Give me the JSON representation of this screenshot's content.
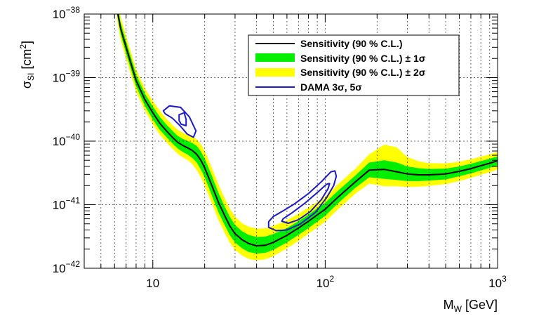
{
  "chart_data": {
    "type": "line",
    "x_scale": "log",
    "y_scale": "log",
    "xlim": [
      4,
      1000
    ],
    "ylim": [
      1e-42,
      1e-38
    ],
    "xlabel": {
      "main": "M",
      "sub": "W",
      "unit": " [GeV]"
    },
    "ylabel": {
      "main": "σ",
      "sub": "SI",
      "unit": " [cm",
      "sup": "2",
      "close": "]"
    },
    "x_ticks": [
      {
        "value": 10,
        "base": "10",
        "exp": ""
      },
      {
        "value": 100,
        "base": "10",
        "exp": "2"
      },
      {
        "value": 1000,
        "base": "10",
        "exp": "3"
      }
    ],
    "y_ticks": [
      {
        "value": 1e-38,
        "base": "10",
        "exp": "−38"
      },
      {
        "value": 1e-39,
        "base": "10",
        "exp": "−39"
      },
      {
        "value": 1e-40,
        "base": "10",
        "exp": "−40"
      },
      {
        "value": 1e-41,
        "base": "10",
        "exp": "−41"
      },
      {
        "value": 1e-42,
        "base": "10",
        "exp": "−42"
      }
    ],
    "legend": {
      "position": "top-right",
      "entries": [
        {
          "label": "Sensitivity (90 % C.L.)",
          "symbol": "line",
          "color": "#000000"
        },
        {
          "label": "Sensitivity (90 % C.L.) ± 1σ",
          "symbol": "box",
          "color": "#00ee00"
        },
        {
          "label": "Sensitivity (90 % C.L.) ± 2σ",
          "symbol": "box",
          "color": "#ffff00"
        },
        {
          "label": "DAMA 3σ, 5σ",
          "symbol": "line",
          "color": "#1a1acc"
        }
      ]
    },
    "colors": {
      "median": "#000000",
      "band1": "#00ee00",
      "band2": "#ffff00",
      "dama": "#1a1acc"
    },
    "series": [
      {
        "name": "Sensitivity (90 % C.L.)",
        "x": [
          6.2,
          6.5,
          7,
          7.5,
          8,
          9,
          10,
          11,
          12,
          13,
          14,
          15,
          16,
          17,
          18,
          19,
          20,
          22,
          24,
          26,
          28,
          30,
          33,
          36,
          40,
          45,
          50,
          60,
          70,
          80,
          100,
          120,
          150,
          180,
          220,
          260,
          300,
          350,
          400,
          500,
          600,
          700,
          800,
          900,
          1000
        ],
        "y": [
          1.2e-38,
          6e-39,
          3e-39,
          1.6e-39,
          9e-40,
          4.5e-40,
          2.8e-40,
          1.9e-40,
          1.45e-40,
          1.15e-40,
          9.5e-41,
          8.5e-41,
          7.8e-41,
          7.1e-41,
          6.2e-41,
          5e-41,
          3.8e-41,
          2e-41,
          1.1e-41,
          6.9e-42,
          4.6e-42,
          3.5e-42,
          2.8e-42,
          2.45e-42,
          2.25e-42,
          2.3e-42,
          2.55e-42,
          3.3e-42,
          4.3e-42,
          5.5e-42,
          8.5e-42,
          1.35e-41,
          2.3e-41,
          3.5e-41,
          3.6e-41,
          3.3e-41,
          3.05e-41,
          2.95e-41,
          2.95e-41,
          3.05e-41,
          3.35e-41,
          3.7e-41,
          4.1e-41,
          4.5e-41,
          4.9e-41
        ],
        "minus_1sigma": [
          9.7e-39,
          4.9e-39,
          2.4e-39,
          1.3e-39,
          7.3e-40,
          3.6e-40,
          2.2e-40,
          1.5e-40,
          1.16e-40,
          9.2e-41,
          7.6e-41,
          6.7e-41,
          6.1e-41,
          5.4e-41,
          4.6e-41,
          3.6e-41,
          2.7e-41,
          1.4e-41,
          7.7e-42,
          4.9e-42,
          3.3e-42,
          2.55e-42,
          2.05e-42,
          1.8e-42,
          1.7e-42,
          1.75e-42,
          1.95e-42,
          2.55e-42,
          3.35e-42,
          4.3e-42,
          6.7e-42,
          1.08e-41,
          1.85e-41,
          2.7e-41,
          2.55e-41,
          2.45e-41,
          2.35e-41,
          2.35e-41,
          2.4e-41,
          2.5e-41,
          2.8e-41,
          3.1e-41,
          3.45e-41,
          3.8e-41,
          4.15e-41
        ],
        "plus_1sigma": [
          1.5e-38,
          7.4e-39,
          3.7e-39,
          2e-39,
          1.12e-39,
          5.6e-40,
          3.5e-40,
          2.4e-40,
          1.82e-40,
          1.45e-40,
          1.2e-40,
          1.08e-40,
          1e-40,
          9.3e-41,
          8.4e-41,
          6.9e-41,
          5.3e-41,
          2.85e-41,
          1.55e-41,
          9.6e-42,
          6.4e-42,
          4.8e-42,
          3.8e-42,
          3.35e-42,
          3.1e-42,
          3.15e-42,
          3.45e-42,
          4.3e-42,
          5.5e-42,
          7e-42,
          1.07e-41,
          1.7e-41,
          2.9e-41,
          4.6e-41,
          5e-41,
          4.6e-41,
          4e-41,
          3.75e-41,
          3.65e-41,
          3.7e-41,
          4e-41,
          4.4e-41,
          4.85e-41,
          5.3e-41,
          5.75e-41
        ],
        "minus_2sigma": [
          8e-39,
          4e-39,
          2e-39,
          1.07e-39,
          6e-40,
          3e-40,
          1.85e-40,
          1.25e-40,
          9.6e-41,
          7.6e-41,
          6.3e-41,
          5.5e-41,
          5e-41,
          4.3e-41,
          3.5e-41,
          2.7e-41,
          2e-41,
          1.05e-41,
          5.8e-42,
          3.7e-42,
          2.5e-42,
          1.95e-42,
          1.58e-42,
          1.4e-42,
          1.33e-42,
          1.38e-42,
          1.55e-42,
          2.05e-42,
          2.7e-42,
          3.5e-42,
          5.4e-42,
          8.7e-42,
          1.5e-41,
          2.15e-41,
          1.95e-41,
          1.95e-41,
          1.9e-41,
          1.92e-41,
          1.98e-41,
          2.1e-41,
          2.35e-41,
          2.65e-41,
          2.95e-41,
          3.25e-41,
          3.6e-41
        ],
        "plus_2sigma": [
          1.8e-38,
          9e-39,
          4.5e-39,
          2.4e-39,
          1.35e-39,
          6.8e-40,
          4.3e-40,
          3e-40,
          2.25e-40,
          1.8e-40,
          1.5e-40,
          1.35e-40,
          1.25e-40,
          1.17e-40,
          1.07e-40,
          9e-41,
          7e-41,
          3.8e-41,
          2.1e-41,
          1.3e-41,
          8.6e-42,
          6.5e-42,
          5.1e-42,
          4.5e-42,
          4.2e-42,
          4.25e-42,
          4.65e-42,
          5.7e-42,
          7.2e-42,
          9e-42,
          1.35e-41,
          2.15e-41,
          3.7e-41,
          6.2e-41,
          8.8e-41,
          8e-41,
          5.6e-41,
          4.8e-41,
          4.5e-41,
          4.45e-41,
          4.75e-41,
          5.2e-41,
          5.7e-41,
          6.2e-41,
          6.8e-41
        ]
      }
    ],
    "contours": [
      {
        "name": "DAMA 3σ low-mass",
        "points": [
          [
            11.5,
            3e-40
          ],
          [
            12.5,
            3.6e-40
          ],
          [
            14.5,
            3.4e-40
          ],
          [
            16.3,
            2.4e-40
          ],
          [
            17.8,
            1.45e-40
          ],
          [
            17.2,
            1.15e-40
          ],
          [
            15.8,
            1.3e-40
          ],
          [
            14.4,
            1.75e-40
          ],
          [
            13.0,
            2.3e-40
          ],
          [
            11.8,
            2.7e-40
          ],
          [
            11.5,
            3e-40
          ]
        ]
      },
      {
        "name": "DAMA 5σ low-mass",
        "points": [
          [
            14.2,
            2.6e-40
          ],
          [
            15.2,
            2.8e-40
          ],
          [
            15.6,
            2.2e-40
          ],
          [
            15.6,
            1.75e-40
          ],
          [
            14.6,
            1.85e-40
          ],
          [
            14.2,
            2.1e-40
          ],
          [
            14.2,
            2.6e-40
          ]
        ]
      },
      {
        "name": "DAMA 3σ high-mass",
        "points": [
          [
            50,
            6.5e-42
          ],
          [
            57,
            8e-42
          ],
          [
            67,
            1.05e-41
          ],
          [
            80,
            1.5e-41
          ],
          [
            95,
            2.3e-41
          ],
          [
            108,
            3.3e-41
          ],
          [
            114,
            3.4e-41
          ],
          [
            116,
            2.8e-41
          ],
          [
            112,
            2e-41
          ],
          [
            102,
            1.3e-41
          ],
          [
            88,
            7.6e-42
          ],
          [
            72,
            5e-42
          ],
          [
            60,
            4e-42
          ],
          [
            52,
            3.9e-42
          ],
          [
            47,
            4.4e-42
          ],
          [
            47,
            5.4e-42
          ],
          [
            50,
            6.5e-42
          ]
        ]
      },
      {
        "name": "DAMA 5σ high-mass",
        "points": [
          [
            57,
            6e-42
          ],
          [
            64,
            7.4e-42
          ],
          [
            76,
            1.05e-41
          ],
          [
            90,
            1.55e-41
          ],
          [
            102,
            2.1e-41
          ],
          [
            106,
            2.15e-41
          ],
          [
            104,
            1.8e-41
          ],
          [
            95,
            1.2e-41
          ],
          [
            82,
            7.8e-42
          ],
          [
            70,
            5.8e-42
          ],
          [
            61,
            5.1e-42
          ],
          [
            56,
            5.5e-42
          ],
          [
            57,
            6e-42
          ]
        ]
      }
    ]
  }
}
